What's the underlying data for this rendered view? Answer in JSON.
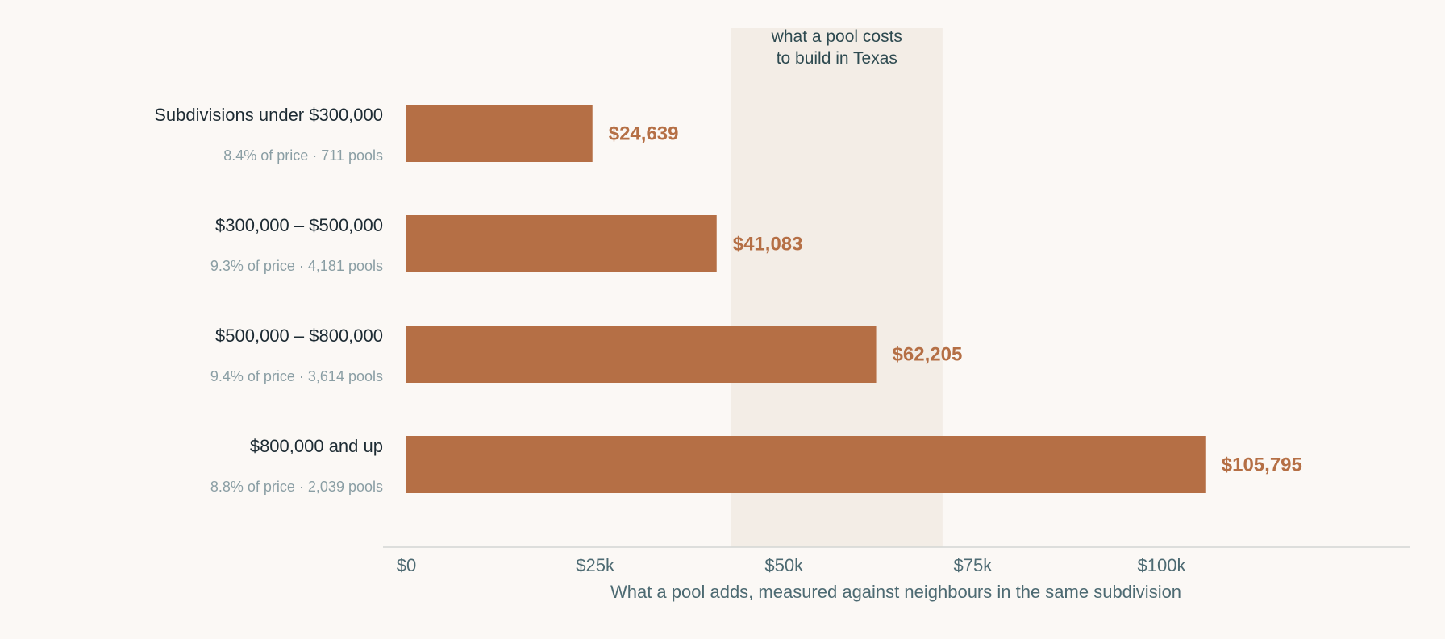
{
  "chart_data": {
    "type": "bar",
    "orientation": "horizontal",
    "categories": [
      "Subdivisions under $300,000",
      "$300,000 – $500,000",
      "$500,000 – $800,000",
      "$800,000 and up"
    ],
    "sublabels": [
      "8.4% of price · 711 pools",
      "9.3% of price · 4,181 pools",
      "9.4% of price · 3,614 pools",
      "8.8% of price · 2,039 pools"
    ],
    "values": [
      24639,
      41083,
      62205,
      105795
    ],
    "value_labels": [
      "$24,639",
      "$41,083",
      "$62,205",
      "$105,795"
    ],
    "xlabel": "What a pool adds, measured against neighbours in the same subdivision",
    "xlim": [
      0,
      133000
    ],
    "ticks": [
      {
        "value": 0,
        "label": "$0"
      },
      {
        "value": 25000,
        "label": "$25k"
      },
      {
        "value": 50000,
        "label": "$50k"
      },
      {
        "value": 75000,
        "label": "$75k"
      },
      {
        "value": 100000,
        "label": "$100k"
      }
    ],
    "band": {
      "from": 43000,
      "to": 71000,
      "label_lines": [
        "what a pool costs",
        "to build in Texas"
      ]
    },
    "colors": {
      "bar": "#b56f45",
      "band": "#f3ede6",
      "axis": "#d3d6d4"
    }
  }
}
